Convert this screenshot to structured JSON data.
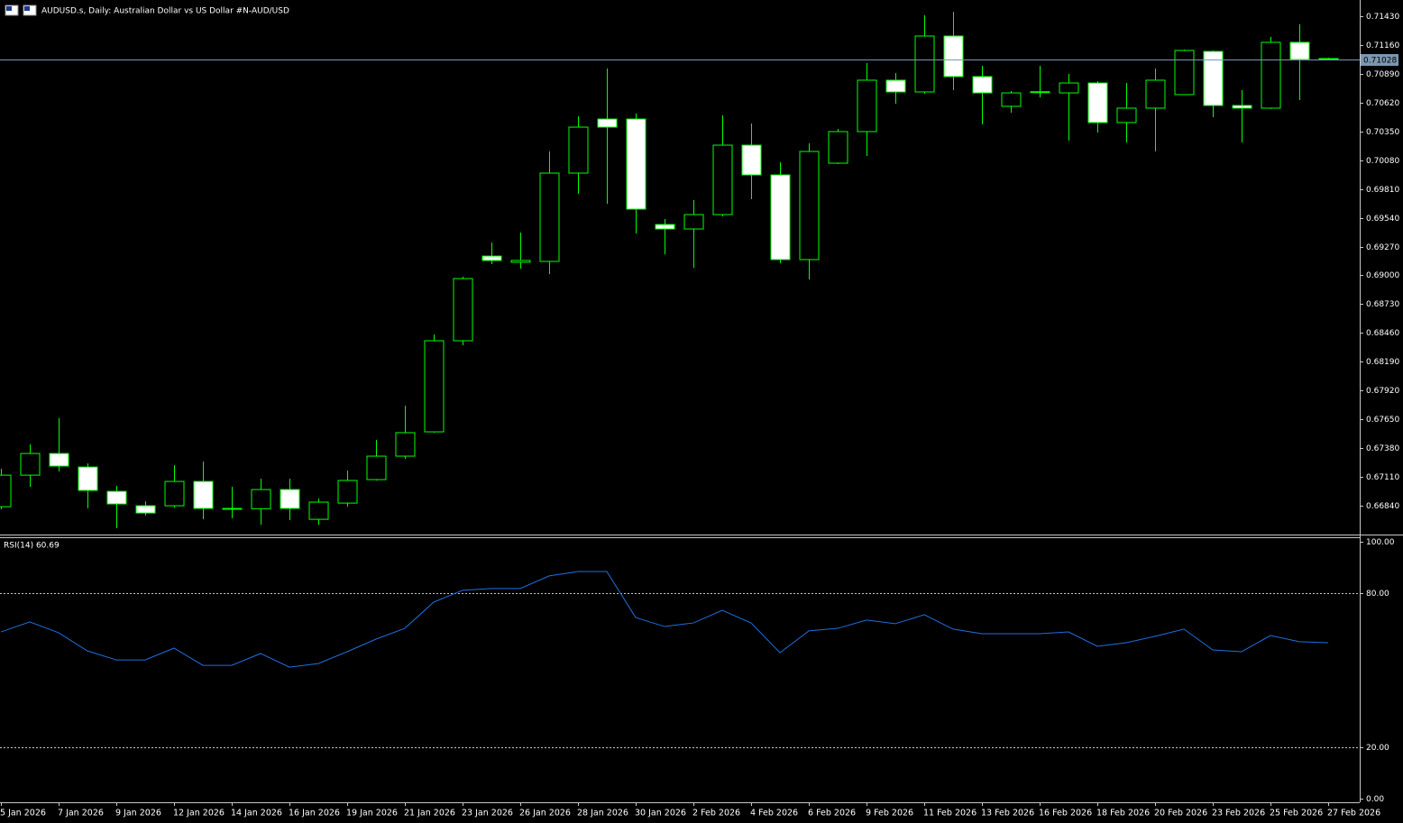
{
  "chart_data": [
    {
      "type": "candlestick",
      "title": "AUDUSD.s, Daily:  Australian Dollar vs US Dollar #N-AUD/USD",
      "categories": [
        "5 Jan 2026",
        null,
        "7 Jan 2026",
        null,
        "9 Jan 2026",
        null,
        "12 Jan 2026",
        null,
        "14 Jan 2026",
        null,
        "16 Jan 2026",
        null,
        "19 Jan 2026",
        null,
        "21 Jan 2026",
        null,
        "23 Jan 2026",
        null,
        "26 Jan 2026",
        null,
        "28 Jan 2026",
        null,
        "30 Jan 2026",
        null,
        "2 Feb 2026",
        null,
        "4 Feb 2026",
        null,
        "6 Feb 2026",
        null,
        "9 Feb 2026",
        null,
        "11 Feb 2026",
        null,
        "13 Feb 2026",
        null,
        "16 Feb 2026",
        null,
        "18 Feb 2026",
        null,
        "20 Feb 2026",
        null,
        "23 Feb 2026",
        null,
        "25 Feb 2026",
        null,
        "27 Feb 2026"
      ],
      "open": [
        0.66831,
        0.67127,
        0.6733,
        0.67203,
        0.66975,
        0.6684,
        0.6684,
        0.67068,
        0.66815,
        0.66812,
        0.66992,
        0.66713,
        0.66865,
        0.67085,
        0.67305,
        0.67533,
        0.68387,
        0.69181,
        0.69123,
        0.69131,
        0.69959,
        0.70466,
        0.70466,
        0.69477,
        0.69435,
        0.6957,
        0.70221,
        0.69942,
        0.69148,
        0.70052,
        0.70348,
        0.7083,
        0.7072,
        0.71244,
        0.70864,
        0.70585,
        0.7072,
        0.70711,
        0.70804,
        0.70433,
        0.70568,
        0.70695,
        0.711,
        0.70593,
        0.70568,
        0.71185,
        0.71033
      ],
      "high": [
        0.67187,
        0.67415,
        0.67662,
        0.67237,
        0.67026,
        0.66882,
        0.6722,
        0.67254,
        0.67017,
        0.67094,
        0.67094,
        0.66908,
        0.6717,
        0.67457,
        0.67778,
        0.68446,
        0.68987,
        0.69308,
        0.69401,
        0.70162,
        0.70492,
        0.7094,
        0.70517,
        0.69528,
        0.69706,
        0.705,
        0.70424,
        0.70061,
        0.70238,
        0.70373,
        0.7099,
        0.70897,
        0.71438,
        0.71472,
        0.70965,
        0.70728,
        0.70965,
        0.70889,
        0.70821,
        0.70804,
        0.7094,
        0.71117,
        0.71109,
        0.70737,
        0.71236,
        0.71354,
        0.71041
      ],
      "low": [
        0.66806,
        0.67017,
        0.67161,
        0.66815,
        0.66629,
        0.66747,
        0.66823,
        0.66713,
        0.66722,
        0.66662,
        0.66705,
        0.66662,
        0.66831,
        0.67077,
        0.67279,
        0.67525,
        0.68345,
        0.69106,
        0.69063,
        0.69012,
        0.69765,
        0.69672,
        0.69393,
        0.69198,
        0.69072,
        0.69553,
        0.69714,
        0.69114,
        0.68962,
        0.70044,
        0.7012,
        0.7061,
        0.70703,
        0.70737,
        0.70416,
        0.70526,
        0.70669,
        0.70263,
        0.70339,
        0.70247,
        0.70162,
        0.70695,
        0.70483,
        0.70247,
        0.7056,
        0.70644,
        0.71016
      ],
      "close": [
        0.67127,
        0.6733,
        0.67212,
        0.66984,
        0.66857,
        0.66772,
        0.67068,
        0.66815,
        0.66812,
        0.66992,
        0.66815,
        0.66874,
        0.67077,
        0.67305,
        0.67525,
        0.68387,
        0.6897,
        0.6914,
        0.6914,
        0.69959,
        0.7039,
        0.7039,
        0.69621,
        0.69435,
        0.6957,
        0.70221,
        0.69942,
        0.69148,
        0.70162,
        0.70348,
        0.7083,
        0.7072,
        0.71244,
        0.70864,
        0.70711,
        0.70711,
        0.70722,
        0.70804,
        0.70433,
        0.70568,
        0.7083,
        0.71109,
        0.70593,
        0.70568,
        0.71185,
        0.71024,
        0.71028
      ],
      "color": "#00ff00",
      "up_fill": "#000000",
      "down_fill": "#ffffff",
      "last_price": {
        "value": 0.71028,
        "label": "0.71028"
      },
      "last_price_color": "#7a98b2",
      "ylim": [
        0.6657,
        0.71582
      ],
      "yticks": [
        {
          "value": 0.7143,
          "label": "0.71430"
        },
        {
          "value": 0.7116,
          "label": "0.71160"
        },
        {
          "value": 0.7089,
          "label": "0.70890"
        },
        {
          "value": 0.7062,
          "label": "0.70620"
        },
        {
          "value": 0.7035,
          "label": "0.70350"
        },
        {
          "value": 0.7008,
          "label": "0.70080"
        },
        {
          "value": 0.6981,
          "label": "0.69810"
        },
        {
          "value": 0.6954,
          "label": "0.69540"
        },
        {
          "value": 0.6927,
          "label": "0.69270"
        },
        {
          "value": 0.69,
          "label": "0.69000"
        },
        {
          "value": 0.6873,
          "label": "0.68730"
        },
        {
          "value": 0.6846,
          "label": "0.68460"
        },
        {
          "value": 0.6819,
          "label": "0.68190"
        },
        {
          "value": 0.6792,
          "label": "0.67920"
        },
        {
          "value": 0.6765,
          "label": "0.67650"
        },
        {
          "value": 0.6738,
          "label": "0.67380"
        },
        {
          "value": 0.6711,
          "label": "0.67110"
        },
        {
          "value": 0.6684,
          "label": "0.66840"
        }
      ]
    },
    {
      "type": "line",
      "title": "RSI(14) 60.69",
      "color": "#1f6fe0",
      "values": [
        64.9,
        68.8,
        64.6,
        57.5,
        54.0,
        54.0,
        58.6,
        51.9,
        51.9,
        56.5,
        51.2,
        52.6,
        57.2,
        62.1,
        66.3,
        76.5,
        81.1,
        81.8,
        81.8,
        86.7,
        88.4,
        88.4,
        70.5,
        67.0,
        68.4,
        73.3,
        68.4,
        56.8,
        65.3,
        66.3,
        69.5,
        68.1,
        71.6,
        66.0,
        64.2,
        64.2,
        64.2,
        64.9,
        59.3,
        60.7,
        63.2,
        66.0,
        57.9,
        57.2,
        63.5,
        61.1,
        60.69
      ],
      "ylim": [
        0,
        100
      ],
      "yticks": [
        {
          "value": 100,
          "label": "100.00"
        },
        {
          "value": 80,
          "label": "80.00"
        },
        {
          "value": 20,
          "label": "20.00"
        },
        {
          "value": 0,
          "label": "0.00"
        }
      ]
    }
  ]
}
